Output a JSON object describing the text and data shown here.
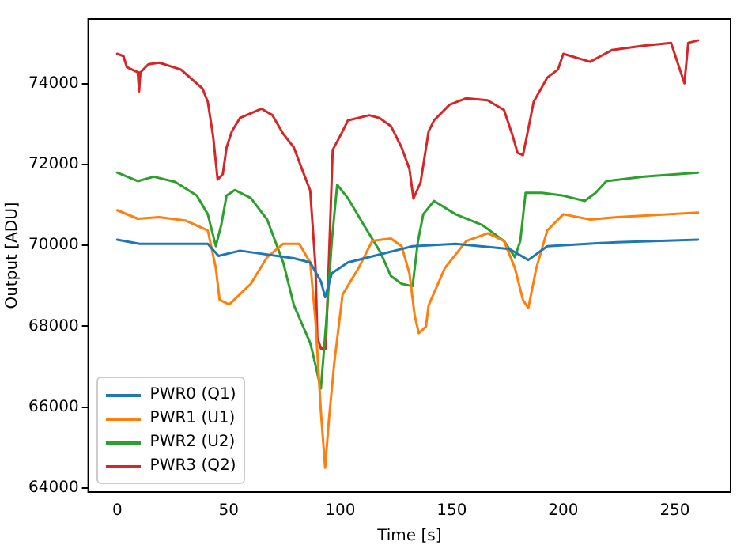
{
  "chart_data": {
    "type": "line",
    "xlabel": "Time [s]",
    "ylabel": "Output [ADU]",
    "xlim": [
      -13,
      275
    ],
    "ylim": [
      63900,
      75600
    ],
    "xticks": [
      0,
      50,
      100,
      150,
      200,
      250
    ],
    "yticks": [
      64000,
      66000,
      68000,
      70000,
      72000,
      74000
    ],
    "grid": false,
    "legend": "bottom left",
    "marker": "none",
    "line_style": "solid",
    "series": [
      {
        "name": "PWR0 (Q1)",
        "color": "#1f77b4",
        "x": [
          0,
          10,
          40.6,
          45.4,
          55,
          79.2,
          86.5,
          91.3,
          93.2,
          96.2,
          103.4,
          117.9,
          132.4,
          151.7,
          175.8,
          184.3,
          192.8,
          224,
          260.4
        ],
        "values": [
          70140,
          70040,
          70040,
          69740,
          69870,
          69680,
          69580,
          69110,
          68720,
          69310,
          69580,
          69780,
          69980,
          70040,
          69910,
          69640,
          69980,
          70080,
          70140
        ]
      },
      {
        "name": "PWR1 (U1)",
        "color": "#ff7f0e",
        "x": [
          0,
          9.2,
          18.8,
          30.9,
          40.6,
          44.2,
          45.9,
          50.2,
          59.9,
          67.2,
          74.4,
          81.6,
          86.5,
          88.9,
          91.3,
          93.2,
          94.9,
          97.3,
          101,
          108.2,
          114.3,
          122.7,
          127.5,
          131,
          133.4,
          135.2,
          138.4,
          139.6,
          146.9,
          156.5,
          166.2,
          173.4,
          178.3,
          181.9,
          184.3,
          187.9,
          192.8,
          200,
          212.1,
          224.2,
          260.4
        ],
        "values": [
          70870,
          70660,
          70700,
          70610,
          70370,
          69440,
          68650,
          68540,
          69050,
          69710,
          70040,
          70040,
          69580,
          68120,
          65890,
          64500,
          65690,
          67090,
          68780,
          69440,
          70110,
          70170,
          69980,
          69310,
          68250,
          67830,
          67990,
          68520,
          69440,
          70110,
          70300,
          70110,
          69440,
          68650,
          68450,
          69440,
          70370,
          70770,
          70640,
          70700,
          70810
        ]
      },
      {
        "name": "PWR2 (U2)",
        "color": "#2ca02c",
        "x": [
          0,
          9.2,
          16.4,
          26,
          35.7,
          40.6,
          44.2,
          46.6,
          49,
          52.7,
          59.9,
          67.2,
          74.4,
          79.2,
          86.5,
          87.7,
          91.3,
          93.7,
          96.2,
          98.6,
          103.4,
          110.6,
          117.9,
          122.7,
          127.5,
          132.4,
          134.8,
          137.2,
          142,
          151.7,
          163.8,
          173.4,
          178.3,
          180.7,
          183.1,
          190.4,
          200,
          209.6,
          214.5,
          219.3,
          236.2,
          260.4
        ],
        "values": [
          71800,
          71590,
          71700,
          71570,
          71230,
          70770,
          69980,
          70500,
          71230,
          71370,
          71170,
          70640,
          69580,
          68520,
          67590,
          67320,
          66460,
          68120,
          70110,
          71500,
          71170,
          70500,
          69840,
          69240,
          69050,
          68990,
          70100,
          70770,
          71100,
          70770,
          70500,
          70110,
          69710,
          70110,
          71300,
          71300,
          71230,
          71100,
          71300,
          71590,
          71700,
          71800
        ]
      },
      {
        "name": "PWR3 (Q2)",
        "color": "#d62728",
        "x": [
          0,
          2.8,
          4.3,
          9.2,
          9.8,
          10.4,
          14,
          18.8,
          28.5,
          38.2,
          40.6,
          43,
          45,
          47.3,
          49,
          51.4,
          55,
          64.7,
          69.6,
          74.4,
          79.2,
          82.8,
          86.5,
          88.9,
          89.7,
          91.3,
          93.5,
          96.6,
          101,
          103.4,
          113,
          117.6,
          122.7,
          127.5,
          131,
          132.8,
          136,
          139.6,
          142,
          149,
          156.5,
          166,
          173.4,
          177,
          179.5,
          181.9,
          183.6,
          186.7,
          192.8,
          197.6,
          200,
          212,
          221.7,
          236,
          248.3,
          254.3,
          256,
          260.4
        ],
        "values": [
          74740,
          74680,
          74410,
          74280,
          73810,
          74280,
          74480,
          74520,
          74350,
          73880,
          73550,
          72690,
          71630,
          71760,
          72420,
          72820,
          73150,
          73380,
          73220,
          72760,
          72420,
          71890,
          71360,
          69460,
          67720,
          67450,
          67450,
          72360,
          72820,
          73090,
          73220,
          73150,
          72950,
          72420,
          71890,
          71160,
          71560,
          72820,
          73090,
          73480,
          73640,
          73590,
          73350,
          72760,
          72290,
          72230,
          72690,
          73550,
          74150,
          74350,
          74740,
          74540,
          74830,
          74940,
          75010,
          74010,
          75010,
          75070
        ]
      }
    ]
  }
}
